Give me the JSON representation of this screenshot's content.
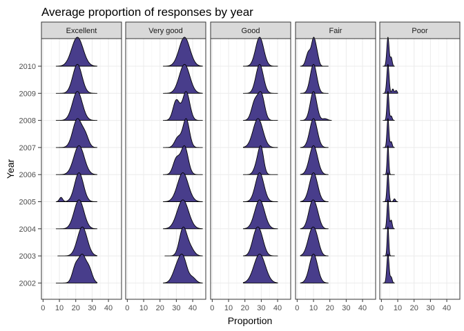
{
  "chart_data": {
    "type": "ridgeline",
    "title": "Average proportion of responses by year",
    "xlabel": "Proportion",
    "ylabel": "Year",
    "xlim": [
      -1,
      48
    ],
    "xticks": [
      0,
      10,
      20,
      30,
      40
    ],
    "years": [
      "2002",
      "2003",
      "2004",
      "2005",
      "2006",
      "2007",
      "2008",
      "2009",
      "2010"
    ],
    "fill_color": "#483D8B",
    "grid": true,
    "legend": "none",
    "facets": [
      {
        "name": "Excellent",
        "ridges": [
          {
            "year": "2002",
            "min": 8,
            "max": 33,
            "peaks": [
              [
                20,
                0.7,
                2
              ],
              [
                24,
                1.0,
                2
              ],
              [
                28,
                0.6,
                2
              ]
            ]
          },
          {
            "year": "2003",
            "min": 9,
            "max": 33,
            "peaks": [
              [
                24,
                1.0,
                3
              ]
            ]
          },
          {
            "year": "2004",
            "min": 8,
            "max": 33,
            "peaks": [
              [
                22,
                1.0,
                3
              ]
            ]
          },
          {
            "year": "2005",
            "min": 8,
            "max": 33,
            "peaks": [
              [
                11,
                0.15,
                1
              ],
              [
                22,
                1.0,
                2.7
              ]
            ]
          },
          {
            "year": "2006",
            "min": 8,
            "max": 33,
            "peaks": [
              [
                22,
                1.0,
                3.2
              ]
            ]
          },
          {
            "year": "2007",
            "min": 8,
            "max": 33,
            "peaks": [
              [
                21,
                1.0,
                2.8
              ],
              [
                26,
                0.35,
                2
              ]
            ]
          },
          {
            "year": "2008",
            "min": 8,
            "max": 33,
            "peaks": [
              [
                21,
                1.0,
                3
              ]
            ]
          },
          {
            "year": "2009",
            "min": 8,
            "max": 33,
            "peaks": [
              [
                21,
                1.0,
                2.8
              ]
            ]
          },
          {
            "year": "2010",
            "min": 8,
            "max": 33,
            "peaks": [
              [
                21,
                1.0,
                3.5
              ]
            ]
          }
        ]
      },
      {
        "name": "Very good",
        "ridges": [
          {
            "year": "2002",
            "min": 22,
            "max": 46,
            "peaks": [
              [
                34,
                1.0,
                2.5
              ],
              [
                30,
                0.5,
                2.5
              ],
              [
                40,
                0.2,
                2
              ]
            ]
          },
          {
            "year": "2003",
            "min": 23,
            "max": 46,
            "peaks": [
              [
                34,
                1.0,
                2.2
              ],
              [
                38,
                0.35,
                2.5
              ]
            ]
          },
          {
            "year": "2004",
            "min": 22,
            "max": 46,
            "peaks": [
              [
                34,
                1.0,
                3.5
              ]
            ]
          },
          {
            "year": "2005",
            "min": 22,
            "max": 46,
            "peaks": [
              [
                34,
                1.0,
                3.3
              ]
            ]
          },
          {
            "year": "2006",
            "min": 22,
            "max": 46,
            "peaks": [
              [
                30,
                0.55,
                2
              ],
              [
                35,
                1.0,
                2.2
              ]
            ]
          },
          {
            "year": "2007",
            "min": 22,
            "max": 46,
            "peaks": [
              [
                31,
                0.35,
                2
              ],
              [
                36,
                1.0,
                2
              ]
            ]
          },
          {
            "year": "2008",
            "min": 22,
            "max": 46,
            "peaks": [
              [
                30,
                0.7,
                2
              ],
              [
                36,
                1.0,
                2.2
              ]
            ]
          },
          {
            "year": "2009",
            "min": 22,
            "max": 46,
            "peaks": [
              [
                35,
                1.0,
                3.2
              ]
            ]
          },
          {
            "year": "2010",
            "min": 22,
            "max": 46,
            "peaks": [
              [
                35,
                1.0,
                3.3
              ]
            ]
          }
        ]
      },
      {
        "name": "Good",
        "ridges": [
          {
            "year": "2002",
            "min": 19,
            "max": 40,
            "peaks": [
              [
                29,
                1.0,
                3.5
              ]
            ]
          },
          {
            "year": "2003",
            "min": 19,
            "max": 40,
            "peaks": [
              [
                26,
                0.6,
                2.2
              ],
              [
                29,
                1.0,
                2.5
              ]
            ]
          },
          {
            "year": "2004",
            "min": 19,
            "max": 40,
            "peaks": [
              [
                29,
                1.0,
                3
              ]
            ]
          },
          {
            "year": "2005",
            "min": 19,
            "max": 40,
            "peaks": [
              [
                29,
                1.0,
                2.6
              ]
            ]
          },
          {
            "year": "2006",
            "min": 19,
            "max": 40,
            "peaks": [
              [
                28,
                0.6,
                2
              ],
              [
                30,
                1.0,
                1.6
              ]
            ]
          },
          {
            "year": "2007",
            "min": 19,
            "max": 40,
            "peaks": [
              [
                28,
                1.0,
                3
              ]
            ]
          },
          {
            "year": "2008",
            "min": 19,
            "max": 40,
            "peaks": [
              [
                26,
                0.7,
                2
              ],
              [
                30,
                1.0,
                2
              ]
            ]
          },
          {
            "year": "2009",
            "min": 19,
            "max": 40,
            "peaks": [
              [
                29,
                1.0,
                2.3
              ]
            ]
          },
          {
            "year": "2010",
            "min": 19,
            "max": 40,
            "peaks": [
              [
                29,
                1.0,
                2.5
              ]
            ]
          }
        ]
      },
      {
        "name": "Fair",
        "ridges": [
          {
            "year": "2002",
            "min": 2,
            "max": 19,
            "peaks": [
              [
                10,
                1.0,
                2.5
              ]
            ]
          },
          {
            "year": "2003",
            "min": 2,
            "max": 19,
            "peaks": [
              [
                9,
                1.0,
                2.5
              ],
              [
                12,
                0.4,
                2
              ]
            ]
          },
          {
            "year": "2004",
            "min": 2,
            "max": 19,
            "peaks": [
              [
                9,
                1.0,
                2.2
              ],
              [
                12,
                0.5,
                2
              ]
            ]
          },
          {
            "year": "2005",
            "min": 2,
            "max": 19,
            "peaks": [
              [
                10,
                1.0,
                2.5
              ]
            ]
          },
          {
            "year": "2006",
            "min": 2,
            "max": 19,
            "peaks": [
              [
                10,
                1.0,
                2.5
              ]
            ]
          },
          {
            "year": "2007",
            "min": 2,
            "max": 19,
            "peaks": [
              [
                10,
                1.0,
                2.3
              ]
            ]
          },
          {
            "year": "2008",
            "min": 2,
            "max": 21,
            "peaks": [
              [
                10,
                1.0,
                2
              ],
              [
                17,
                0.06,
                1.5
              ]
            ]
          },
          {
            "year": "2009",
            "min": 2,
            "max": 19,
            "peaks": [
              [
                10,
                1.0,
                2
              ]
            ]
          },
          {
            "year": "2010",
            "min": 2,
            "max": 19,
            "peaks": [
              [
                7,
                0.6,
                1.5
              ],
              [
                10,
                1.0,
                1.2
              ],
              [
                12,
                0.5,
                1.2
              ]
            ]
          }
        ]
      },
      {
        "name": "Poor",
        "ridges": [
          {
            "year": "2002",
            "min": 1,
            "max": 8,
            "peaks": [
              [
                4,
                1.0,
                0.7
              ],
              [
                6,
                0.2,
                0.6
              ]
            ]
          },
          {
            "year": "2003",
            "min": 1,
            "max": 8,
            "peaks": [
              [
                4,
                1.0,
                0.5
              ]
            ]
          },
          {
            "year": "2004",
            "min": 1,
            "max": 8,
            "peaks": [
              [
                4,
                1.0,
                0.6
              ],
              [
                6,
                0.3,
                0.6
              ]
            ]
          },
          {
            "year": "2005",
            "min": 1,
            "max": 10,
            "peaks": [
              [
                4,
                1.0,
                0.6
              ],
              [
                8,
                0.1,
                0.6
              ]
            ]
          },
          {
            "year": "2006",
            "min": 1,
            "max": 8,
            "peaks": [
              [
                4,
                1.0,
                0.5
              ]
            ]
          },
          {
            "year": "2007",
            "min": 1,
            "max": 8,
            "peaks": [
              [
                4,
                1.0,
                0.6
              ],
              [
                6,
                0.2,
                0.6
              ]
            ]
          },
          {
            "year": "2008",
            "min": 1,
            "max": 8,
            "peaks": [
              [
                4,
                1.0,
                0.6
              ],
              [
                6,
                0.15,
                0.6
              ]
            ]
          },
          {
            "year": "2009",
            "min": 1,
            "max": 10,
            "peaks": [
              [
                4,
                1.0,
                0.7
              ],
              [
                7,
                0.15,
                0.6
              ],
              [
                9,
                0.1,
                0.6
              ]
            ]
          },
          {
            "year": "2010",
            "min": 1,
            "max": 8,
            "peaks": [
              [
                4,
                1.0,
                0.7
              ],
              [
                6,
                0.3,
                0.6
              ]
            ]
          }
        ]
      }
    ]
  }
}
